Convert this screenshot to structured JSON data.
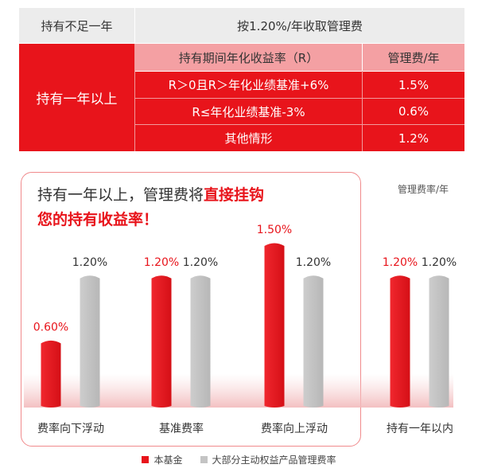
{
  "table": {
    "row_short_label": "持有不足一年",
    "row_short_fee": "按1.20%/年收取管理费",
    "row_long_label": "持有一年以上",
    "header_return": "持有期间年化收益率（R）",
    "header_fee": "管理费/年",
    "rows": [
      {
        "condition": "R＞0且R＞年化业绩基准+6%",
        "fee": "1.5%"
      },
      {
        "condition": "R≤年化业绩基准-3%",
        "fee": "0.6%"
      },
      {
        "condition": "其他情形",
        "fee": "1.2%"
      }
    ]
  },
  "headline": {
    "line1_prefix": "持有一年以上，管理费将",
    "line1_strong": "直接挂钩",
    "line2_strong": "您的持有收益率！"
  },
  "chart_data": {
    "type": "bar",
    "ylabel": "管理费率/年",
    "categories": [
      "费率向下浮动",
      "基准费率",
      "费率向上浮动",
      "持有一年以内"
    ],
    "series": [
      {
        "name": "本基金",
        "values": [
          0.6,
          1.2,
          1.5,
          1.2
        ],
        "labels": [
          "0.60%",
          "1.20%",
          "1.50%",
          "1.20%"
        ],
        "color": "#e8141b"
      },
      {
        "name": "大部分主动权益产品管理费率",
        "values": [
          1.2,
          1.2,
          1.2,
          1.2
        ],
        "labels": [
          "1.20%",
          "1.20%",
          "1.20%",
          "1.20%"
        ],
        "color": "#c4c4c4"
      }
    ],
    "ylim": [
      0,
      1.5
    ],
    "grid": false,
    "legend": "bottom-center"
  },
  "colors": {
    "accent": "#e8141b",
    "grey_bar": "#c4c4c4",
    "frame": "#f08a8c"
  }
}
